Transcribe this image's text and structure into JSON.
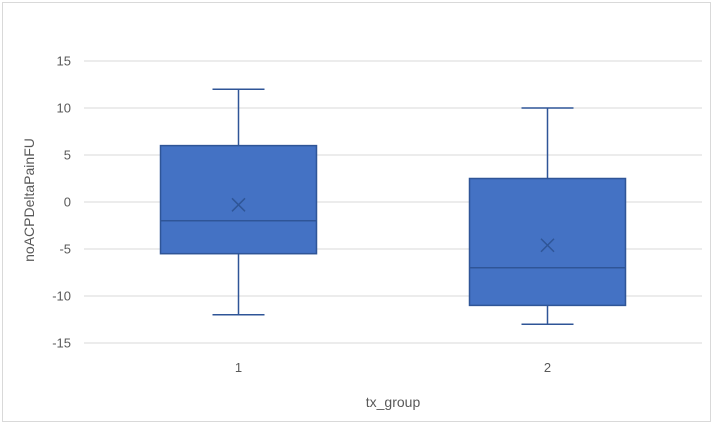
{
  "chart_data": {
    "type": "box",
    "xlabel": "tx_group",
    "ylabel": "noACPDeltaPainFU",
    "ylim": [
      -15,
      15
    ],
    "yticks": [
      -15,
      -10,
      -5,
      0,
      5,
      10,
      15
    ],
    "grid": true,
    "categories": [
      "1",
      "2"
    ],
    "boxes": [
      {
        "category": "1",
        "min": -12,
        "q1": -5.5,
        "median": -2,
        "mean": -0.3,
        "q3": 6,
        "max": 12
      },
      {
        "category": "2",
        "min": -13,
        "q1": -11,
        "median": -7,
        "mean": -4.6,
        "q3": 2.5,
        "max": 10
      }
    ],
    "colors": {
      "box_fill": "#4472C4",
      "box_stroke": "#2F5597",
      "grid": "#d9d9d9",
      "text": "#595959"
    }
  }
}
